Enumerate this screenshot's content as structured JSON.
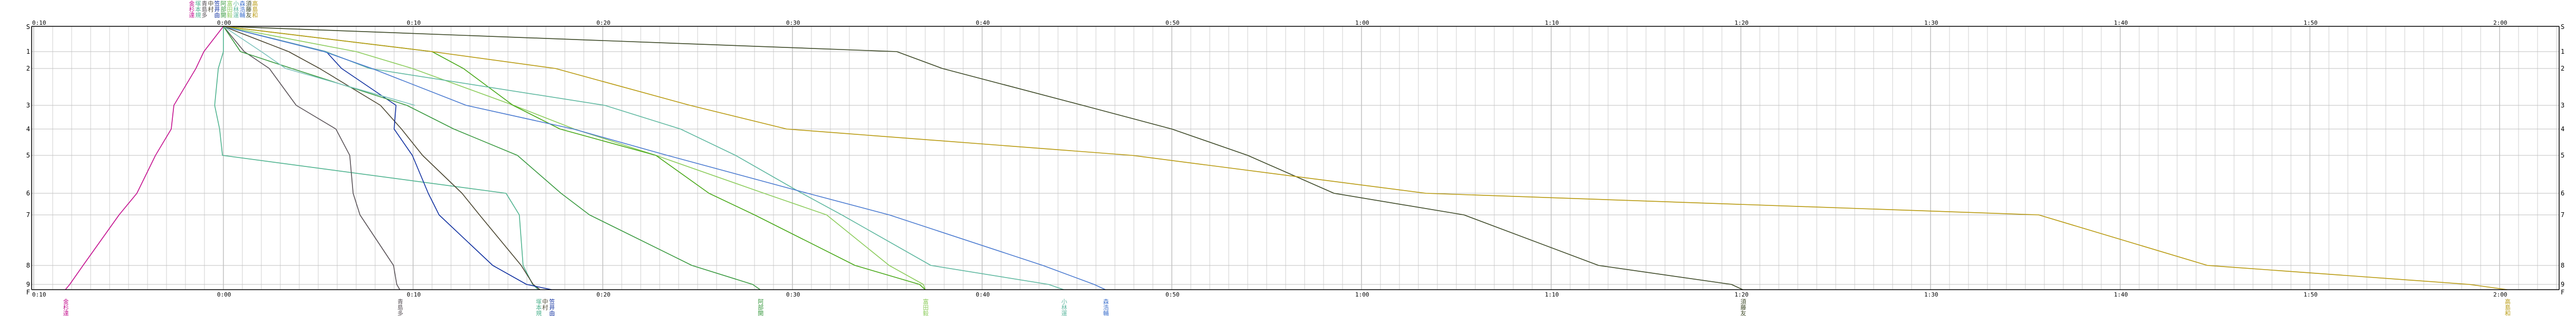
{
  "chart_data": {
    "type": "line",
    "title": "",
    "xlabel": "",
    "ylabel": "",
    "x_unit": "minutes",
    "xlim": [
      -10.1,
      123.1
    ],
    "grid": true,
    "x_tick_labels": [
      "0:10",
      "0:00",
      "0:10",
      "0:20",
      "0:30",
      "0:40",
      "0:50",
      "1:00",
      "1:10",
      "1:20",
      "1:30",
      "1:40",
      "1:50",
      "2:00"
    ],
    "x_tick_values": [
      -10,
      0,
      10,
      20,
      30,
      40,
      50,
      60,
      70,
      80,
      90,
      100,
      110,
      120
    ],
    "categories": [
      "S",
      "1",
      "2",
      "3",
      "4",
      "5",
      "6",
      "7",
      "8",
      "9",
      "F"
    ],
    "series": [
      {
        "name": "金杉達",
        "color": "#c4108f",
        "values": [
          0,
          -1.03,
          -1.45,
          -2.61,
          -2.75,
          -3.58,
          -4.56,
          -5.5,
          -7.4,
          -8.1,
          -8.33
        ]
      },
      {
        "name": "塚本規",
        "color": "#4fb38f",
        "values": [
          0,
          0,
          -0.27,
          -0.46,
          -0.2,
          -0.05,
          14.9,
          15.6,
          15.8,
          16.3,
          16.6
        ]
      },
      {
        "name": "青島多",
        "color": "#5a5358",
        "values": [
          0,
          1.1,
          2.42,
          3.84,
          5.93,
          6.66,
          6.84,
          7.2,
          8.97,
          9.14,
          9.3
        ]
      },
      {
        "name": "中村",
        "color": "#4a4530",
        "values": [
          0,
          3.44,
          5.07,
          8.28,
          9.39,
          10.5,
          12.58,
          13.5,
          15.7,
          16.33,
          16.69
        ]
      },
      {
        "name": "笠井由",
        "color": "#1030a0",
        "values": [
          0,
          5.42,
          6.23,
          9.1,
          9.0,
          9.96,
          10.8,
          11.37,
          14.2,
          15.98,
          17.3
        ]
      },
      {
        "name": "阿部開",
        "color": "#3a9a40",
        "values": [
          0,
          0.9,
          3.6,
          9.67,
          12.15,
          15.5,
          17.8,
          19.3,
          24.7,
          27.9,
          28.3
        ]
      },
      {
        "name": "富田毅",
        "color": "#8ccc5c",
        "values": [
          0,
          7.0,
          9.96,
          15.3,
          18.5,
          22.8,
          28.5,
          31.8,
          35.1,
          36.9,
          37.0
        ]
      },
      {
        "name": "",
        "color": "#48a818",
        "values": [
          0,
          11.0,
          12.65,
          15.27,
          17.75,
          22.8,
          25.6,
          28.0,
          33.3,
          36.7,
          37.0
        ]
      },
      {
        "name": "小林運",
        "color": "#5fb8a0",
        "values": [
          0,
          5.4,
          7.7,
          20.1,
          24.1,
          27.0,
          30.5,
          32.6,
          37.3,
          43.5,
          44.3
        ]
      },
      {
        "name": "森浩輔",
        "color": "#4a7ad0",
        "values": [
          0,
          5.3,
          7.83,
          12.8,
          18.45,
          23.4,
          30.8,
          35.1,
          43.2,
          45.9,
          46.5
        ]
      },
      {
        "name": "",
        "color": "#7cc2bc",
        "values": [
          0,
          2.0,
          3.28,
          10.1,
          null,
          null,
          null,
          null,
          null,
          null,
          null
        ]
      },
      {
        "name": "須藤友",
        "color": "#3e4a28",
        "values": [
          0,
          35.5,
          37.9,
          45.3,
          50.0,
          54.0,
          58.55,
          65.4,
          72.5,
          79.5,
          80.1
        ]
      },
      {
        "name": "高島和",
        "color": "#b89a10",
        "values": [
          0,
          11.0,
          17.5,
          24.6,
          29.7,
          47.9,
          63.4,
          95.7,
          104.6,
          118.4,
          120.4
        ]
      }
    ]
  }
}
